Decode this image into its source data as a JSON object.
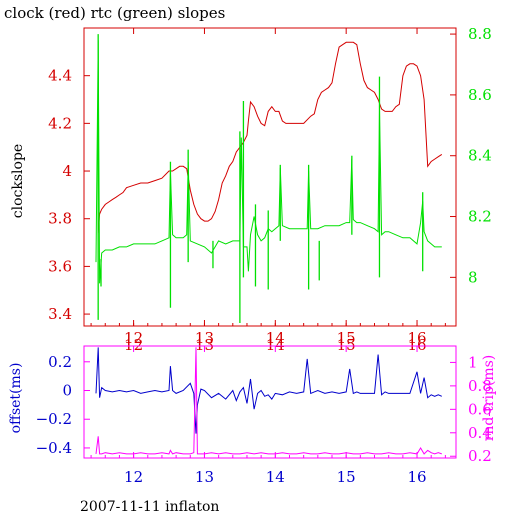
{
  "title": "clock (red) rtc (green) slopes",
  "footer": "2007-11-11 inflaton",
  "colors": {
    "red": "#d40000",
    "green": "#00e000",
    "blue": "#0000cc",
    "magenta": "#ff00ff",
    "black": "#000000"
  },
  "chart_data": [
    {
      "type": "line",
      "title": "clock (red) rtc (green) slopes",
      "xlabel": "",
      "ylabel": "clockslope",
      "y2label": "",
      "xlim": [
        11.3,
        16.55
      ],
      "ylim": [
        3.35,
        4.6
      ],
      "y2lim": [
        7.84,
        8.82
      ],
      "grid": false,
      "x_ticks": [
        12,
        13,
        14,
        15,
        16
      ],
      "y_ticks": [
        3.4,
        3.6,
        3.8,
        4,
        4.2,
        4.4
      ],
      "y_tick_labels": [
        "3.4",
        "3.6",
        "3.8",
        "4",
        "4.2",
        "4.4"
      ],
      "y2_ticks": [
        8,
        8.2,
        8.4,
        8.6,
        8.8
      ],
      "y2_tick_labels": [
        "8",
        "8.2",
        "8.4",
        "8.6",
        "8.8"
      ],
      "series": [
        {
          "name": "clock",
          "color": "red",
          "axis": "left",
          "x": [
            11.5,
            11.52,
            11.55,
            11.6,
            11.65,
            11.7,
            11.75,
            11.8,
            11.85,
            11.9,
            12.0,
            12.1,
            12.2,
            12.3,
            12.4,
            12.5,
            12.55,
            12.6,
            12.65,
            12.7,
            12.75,
            12.8,
            12.85,
            12.9,
            12.95,
            13.0,
            13.05,
            13.1,
            13.15,
            13.2,
            13.25,
            13.3,
            13.35,
            13.4,
            13.45,
            13.5,
            13.55,
            13.6,
            13.62,
            13.65,
            13.7,
            13.75,
            13.8,
            13.85,
            13.9,
            13.95,
            14.0,
            14.05,
            14.1,
            14.15,
            14.2,
            14.3,
            14.4,
            14.5,
            14.55,
            14.6,
            14.65,
            14.7,
            14.75,
            14.8,
            14.85,
            14.9,
            14.95,
            15.0,
            15.05,
            15.1,
            15.15,
            15.2,
            15.25,
            15.3,
            15.35,
            15.4,
            15.45,
            15.5,
            15.55,
            15.6,
            15.65,
            15.7,
            15.75,
            15.8,
            15.85,
            15.9,
            15.95,
            16.0,
            16.05,
            16.1,
            16.15,
            16.2,
            16.25,
            16.3,
            16.35
          ],
          "y": [
            3.74,
            3.82,
            3.84,
            3.86,
            3.87,
            3.88,
            3.89,
            3.9,
            3.91,
            3.93,
            3.94,
            3.95,
            3.95,
            3.96,
            3.97,
            4.0,
            4.0,
            4.01,
            4.02,
            4.02,
            4.01,
            3.92,
            3.86,
            3.82,
            3.8,
            3.79,
            3.79,
            3.8,
            3.83,
            3.88,
            3.95,
            3.98,
            4.02,
            4.04,
            4.08,
            4.1,
            4.12,
            4.15,
            4.21,
            4.29,
            4.27,
            4.23,
            4.2,
            4.19,
            4.25,
            4.27,
            4.25,
            4.25,
            4.21,
            4.2,
            4.2,
            4.2,
            4.2,
            4.23,
            4.24,
            4.3,
            4.33,
            4.34,
            4.35,
            4.37,
            4.45,
            4.52,
            4.53,
            4.54,
            4.54,
            4.54,
            4.53,
            4.45,
            4.38,
            4.35,
            4.34,
            4.33,
            4.3,
            4.26,
            4.25,
            4.25,
            4.25,
            4.27,
            4.28,
            4.4,
            4.44,
            4.45,
            4.45,
            4.44,
            4.4,
            4.3,
            4.02,
            4.04,
            4.05,
            4.06,
            4.07
          ]
        },
        {
          "name": "rtc",
          "color": "green",
          "axis": "right",
          "x": [
            11.47,
            11.5,
            11.52,
            11.55,
            11.6,
            11.7,
            11.8,
            11.9,
            12.0,
            12.1,
            12.2,
            12.3,
            12.4,
            12.5,
            12.52,
            12.55,
            12.6,
            12.7,
            12.75,
            12.77,
            12.8,
            12.9,
            13.0,
            13.1,
            13.15,
            13.2,
            13.3,
            13.4,
            13.5,
            13.52,
            13.55,
            13.6,
            13.62,
            13.65,
            13.7,
            13.75,
            13.8,
            13.85,
            13.9,
            13.95,
            14.0,
            14.05,
            14.07,
            14.1,
            14.2,
            14.3,
            14.4,
            14.45,
            14.47,
            14.5,
            14.6,
            14.7,
            14.8,
            14.9,
            15.0,
            15.05,
            15.08,
            15.1,
            15.15,
            15.2,
            15.3,
            15.4,
            15.45,
            15.47,
            15.5,
            15.55,
            15.6,
            15.7,
            15.8,
            15.9,
            16.0,
            16.05,
            16.08,
            16.1,
            16.15,
            16.2,
            16.25,
            16.3,
            16.35
          ],
          "y": [
            8.05,
            8.78,
            7.98,
            8.08,
            8.09,
            8.09,
            8.1,
            8.1,
            8.11,
            8.11,
            8.11,
            8.11,
            8.12,
            8.13,
            8.35,
            8.14,
            8.13,
            8.13,
            8.14,
            8.38,
            8.12,
            8.11,
            8.1,
            8.08,
            8.1,
            8.12,
            8.11,
            8.12,
            8.12,
            8.46,
            8.1,
            8.1,
            8.02,
            8.14,
            8.2,
            8.14,
            8.12,
            8.13,
            8.16,
            8.15,
            8.16,
            8.17,
            8.36,
            8.17,
            8.16,
            8.16,
            8.16,
            8.16,
            8.35,
            8.16,
            8.16,
            8.17,
            8.17,
            8.17,
            8.18,
            8.18,
            8.39,
            8.19,
            8.18,
            8.18,
            8.17,
            8.16,
            8.15,
            8.55,
            8.14,
            8.15,
            8.15,
            8.14,
            8.13,
            8.13,
            8.11,
            8.18,
            8.25,
            8.15,
            8.12,
            8.11,
            8.1,
            8.1,
            8.1
          ]
        }
      ],
      "spikes": [
        {
          "series": "rtc",
          "x": 11.5,
          "y_high": 8.8,
          "y_low": 7.86
        },
        {
          "series": "rtc",
          "x": 11.54,
          "y_high": 8.06,
          "y_low": 7.97
        },
        {
          "series": "rtc",
          "x": 12.52,
          "y_high": 8.38,
          "y_low": 7.9
        },
        {
          "series": "rtc",
          "x": 12.77,
          "y_high": 8.42,
          "y_low": 8.05
        },
        {
          "series": "rtc",
          "x": 13.12,
          "y_high": 8.12,
          "y_low": 8.03
        },
        {
          "series": "rtc",
          "x": 13.5,
          "y_high": 8.48,
          "y_low": 7.85
        },
        {
          "series": "rtc",
          "x": 13.55,
          "y_high": 8.58,
          "y_low": 8.0
        },
        {
          "series": "rtc",
          "x": 13.72,
          "y_high": 8.24,
          "y_low": 7.97
        },
        {
          "series": "rtc",
          "x": 13.9,
          "y_high": 8.22,
          "y_low": 7.96
        },
        {
          "series": "rtc",
          "x": 14.07,
          "y_high": 8.37,
          "y_low": 8.12
        },
        {
          "series": "rtc",
          "x": 14.47,
          "y_high": 8.37,
          "y_low": 7.96
        },
        {
          "series": "rtc",
          "x": 14.62,
          "y_high": 8.12,
          "y_low": 7.99
        },
        {
          "series": "rtc",
          "x": 15.08,
          "y_high": 8.4,
          "y_low": 8.14
        },
        {
          "series": "rtc",
          "x": 15.47,
          "y_high": 8.66,
          "y_low": 8.0
        },
        {
          "series": "rtc",
          "x": 16.08,
          "y_high": 8.28,
          "y_low": 8.02
        }
      ]
    },
    {
      "type": "line",
      "title": "",
      "xlabel": "2007-11-11 inflaton",
      "ylabel": "offset(ms)",
      "y2label": "rnd-trip(ms)",
      "xlim": [
        11.3,
        16.55
      ],
      "ylim": [
        -0.47,
        0.31
      ],
      "y2lim": [
        0.185,
        1.14
      ],
      "grid": false,
      "x_ticks": [
        12,
        13,
        14,
        15,
        16
      ],
      "y_ticks": [
        -0.4,
        -0.2,
        0,
        0.2
      ],
      "y_tick_labels": [
        "−0.4",
        "−0.2",
        "0",
        "0.2"
      ],
      "y2_ticks": [
        0.2,
        0.4,
        0.6,
        0.8,
        1
      ],
      "y2_tick_labels": [
        "0.2",
        "0.4",
        "0.6",
        "0.8",
        "1"
      ],
      "series": [
        {
          "name": "offset",
          "color": "blue",
          "axis": "left",
          "x": [
            11.47,
            11.5,
            11.52,
            11.55,
            11.6,
            11.7,
            11.8,
            11.9,
            12.0,
            12.1,
            12.2,
            12.3,
            12.4,
            12.5,
            12.52,
            12.55,
            12.6,
            12.7,
            12.8,
            12.85,
            12.88,
            12.9,
            12.95,
            13.0,
            13.1,
            13.2,
            13.3,
            13.4,
            13.45,
            13.5,
            13.55,
            13.6,
            13.65,
            13.7,
            13.75,
            13.8,
            13.85,
            13.9,
            13.95,
            14.0,
            14.1,
            14.2,
            14.3,
            14.4,
            14.45,
            14.5,
            14.55,
            14.6,
            14.7,
            14.8,
            14.9,
            15.0,
            15.05,
            15.1,
            15.15,
            15.2,
            15.3,
            15.4,
            15.45,
            15.5,
            15.55,
            15.6,
            15.7,
            15.8,
            15.9,
            16.0,
            16.05,
            16.1,
            16.15,
            16.2,
            16.25,
            16.3,
            16.35
          ],
          "y": [
            -0.02,
            0.3,
            -0.05,
            0.02,
            0.0,
            -0.01,
            0.0,
            -0.01,
            0.0,
            -0.02,
            -0.01,
            0.0,
            -0.01,
            0.0,
            0.17,
            0.0,
            -0.02,
            0.0,
            0.05,
            -0.02,
            -0.3,
            -0.1,
            0.01,
            0.0,
            -0.05,
            -0.02,
            -0.06,
            0.0,
            -0.07,
            -0.01,
            0.02,
            -0.09,
            0.08,
            -0.13,
            -0.02,
            0.0,
            -0.04,
            -0.03,
            -0.06,
            -0.02,
            -0.03,
            -0.01,
            -0.02,
            -0.01,
            0.22,
            -0.02,
            -0.01,
            0.0,
            -0.02,
            -0.01,
            -0.02,
            -0.01,
            0.15,
            -0.02,
            -0.01,
            -0.02,
            -0.02,
            -0.02,
            0.25,
            -0.03,
            -0.01,
            -0.02,
            -0.02,
            -0.02,
            -0.02,
            0.13,
            -0.02,
            0.09,
            -0.05,
            -0.03,
            -0.04,
            -0.03,
            -0.04
          ]
        },
        {
          "name": "rnd-trip",
          "color": "magenta",
          "axis": "right",
          "x": [
            11.47,
            11.5,
            11.52,
            11.55,
            11.6,
            11.7,
            11.8,
            11.9,
            12.0,
            12.1,
            12.2,
            12.3,
            12.4,
            12.5,
            12.52,
            12.55,
            12.6,
            12.7,
            12.8,
            12.85,
            12.88,
            12.9,
            13.0,
            13.1,
            13.2,
            13.3,
            13.4,
            13.5,
            13.6,
            13.7,
            13.8,
            13.9,
            14.0,
            14.1,
            14.2,
            14.3,
            14.4,
            14.5,
            14.6,
            14.7,
            14.8,
            14.9,
            15.0,
            15.1,
            15.2,
            15.3,
            15.4,
            15.5,
            15.6,
            15.7,
            15.8,
            15.9,
            16.0,
            16.05,
            16.1,
            16.15,
            16.2,
            16.25,
            16.3,
            16.35
          ],
          "y": [
            0.22,
            0.37,
            0.22,
            0.22,
            0.23,
            0.22,
            0.23,
            0.22,
            0.22,
            0.23,
            0.22,
            0.22,
            0.23,
            0.22,
            0.25,
            0.22,
            0.23,
            0.22,
            0.22,
            0.23,
            1.13,
            0.22,
            0.22,
            0.23,
            0.22,
            0.23,
            0.22,
            0.22,
            0.23,
            0.22,
            0.23,
            0.22,
            0.22,
            0.23,
            0.22,
            0.22,
            0.23,
            0.22,
            0.22,
            0.23,
            0.22,
            0.22,
            0.23,
            0.22,
            0.22,
            0.23,
            0.22,
            0.22,
            0.23,
            0.22,
            0.22,
            0.23,
            0.22,
            0.27,
            0.22,
            0.25,
            0.23,
            0.22,
            0.23,
            0.22
          ]
        }
      ]
    }
  ]
}
